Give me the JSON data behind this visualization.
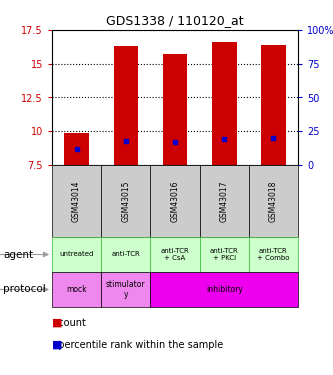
{
  "title": "GDS1338 / 110120_at",
  "samples": [
    "GSM43014",
    "GSM43015",
    "GSM43016",
    "GSM43017",
    "GSM43018"
  ],
  "bar_bottom": 7.5,
  "bar_tops": [
    9.9,
    16.3,
    15.7,
    16.6,
    16.4
  ],
  "percentile_y": [
    8.7,
    9.3,
    9.2,
    9.4,
    9.5
  ],
  "ylim": [
    7.5,
    17.5
  ],
  "yticks_left": [
    7.5,
    10.0,
    12.5,
    15.0,
    17.5
  ],
  "ytick_left_labels": [
    "7.5",
    "10",
    "12.5",
    "15",
    "17.5"
  ],
  "ytick_right_labels": [
    "0",
    "25",
    "50",
    "75",
    "100%"
  ],
  "bar_color": "#cc0000",
  "percentile_color": "#0000cc",
  "agent_labels": [
    "untreated",
    "anti-TCR",
    "anti-TCR\n+ CsA",
    "anti-TCR\n+ PKCi",
    "anti-TCR\n+ Combo"
  ],
  "agent_bg": "#ccffcc",
  "agent_border": "#33bb33",
  "protocol_spans": [
    {
      "start": 0,
      "end": 0,
      "label": "mock",
      "color": "#ee88ee"
    },
    {
      "start": 1,
      "end": 1,
      "label": "stimulator\ny",
      "color": "#ee88ee"
    },
    {
      "start": 2,
      "end": 4,
      "label": "inhibitory",
      "color": "#ee00ee"
    }
  ],
  "sample_bg": "#cccccc",
  "left_color": "#cc0000",
  "right_color": "#0000cc",
  "figwidth": 3.33,
  "figheight": 3.75,
  "dpi": 100
}
